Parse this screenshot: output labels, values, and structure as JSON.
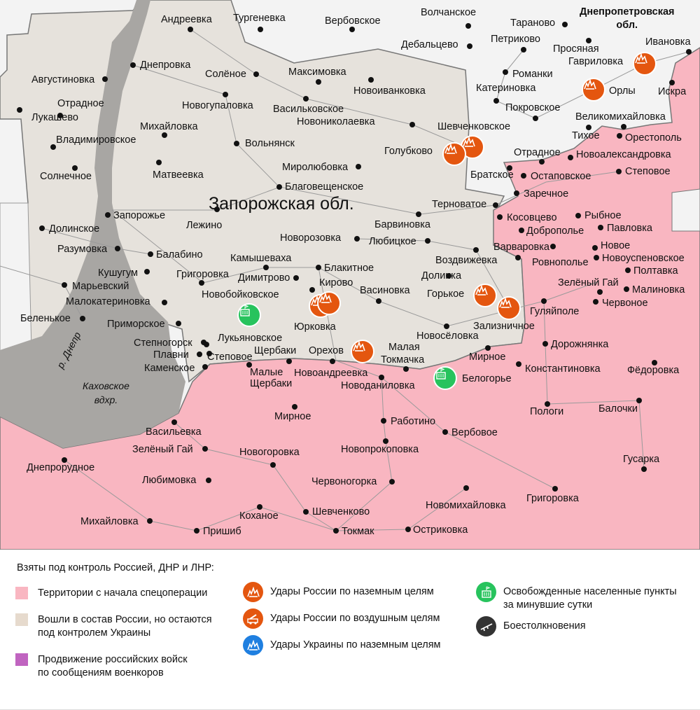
{
  "map": {
    "region_label": "Запорожская обл.",
    "neighbor_region": [
      "Днепропетровская",
      "обл."
    ],
    "river_label": "р. Днепр",
    "reservoir_label": [
      "Каховское",
      "вдхр."
    ],
    "colors": {
      "occupied": "#f9b6c1",
      "annexed_ukraine_control": "#e6e2dc",
      "outside": "#f3f3f3",
      "water": "#a8a6a3",
      "strike": "#e4560f",
      "liberated": "#27c35d"
    },
    "places": [
      "Андреевка",
      "Тургеневка",
      "Вербовское",
      "Волчанское",
      "Тараново",
      "Дебальцево",
      "Петриково",
      "Просяная",
      "Гавриловка",
      "Ивановка",
      "Романки",
      "Катериновка",
      "Орлы",
      "Искра",
      "Покровское",
      "Великомихайловка",
      "Тихое",
      "Орестополь",
      "Шевченковское",
      "Голубково",
      "Отрадное",
      "Новоалександровка",
      "Братское",
      "Остаповское",
      "Степовое",
      "Заречное",
      "Терноватое",
      "Косовцево",
      "Рыбное",
      "Доброполье",
      "Павловка",
      "Варваровка",
      "Новое",
      "Ровнополье",
      "Новоуспеновское",
      "Полтавка",
      "Зелёный Гай",
      "Малиновка",
      "Червоное",
      "Гуляйполе",
      "Дорожнянка",
      "Константиновка",
      "Фёдоровка",
      "Пологи",
      "Балочки",
      "Гусарка",
      "Григоровка",
      "Новомихайловка",
      "Остриковка",
      "Токмак",
      "Шевченково",
      "Коханое",
      "Пришиб",
      "Михайловка",
      "Любимовка",
      "Новогоровка",
      "Червоногорка",
      "Новопрокоповка",
      "Работино",
      "Вербовое",
      "Зелёный Гай",
      "Васильевка",
      "Днепрорудное",
      "Мирное",
      "Новоданиловка",
      "Белогорье",
      "Малая",
      "Токмачка",
      "Мирное",
      "Новоандреевка",
      "Орехов",
      "Щербаки",
      "Малые",
      "Щербаки",
      "Степовое",
      "Лукьяновское",
      "Степногорск",
      "Плавни",
      "Каменское",
      "Приморское",
      "Юрковка",
      "Новосёловка",
      "Зализничное",
      "Горькое",
      "Васиновка",
      "Кирово",
      "Долинка",
      "Воздвижевка",
      "Блакитное",
      "Димитрово",
      "Камышеваха",
      "Новобойковское",
      "Григоровка",
      "Кушугум",
      "Марьевский",
      "Малокатериновка",
      "Беленькое",
      "Балабино",
      "Разумовка",
      "Долинское",
      "Запорожье",
      "Лежино",
      "Новорозовка",
      "Любицкое",
      "Барвиновка",
      "Благовещенское",
      "Миролюбовка",
      "Вольнянск",
      "Матвеевка",
      "Солнечное",
      "Владимировское",
      "Михайловка",
      "Лукашево",
      "Отрадное",
      "Августиновка",
      "Днепровка",
      "Солёное",
      "Максимовка",
      "Новогупаловка",
      "Васильковское",
      "Новоиванковка",
      "Новониколаевка"
    ],
    "markers": [
      "strike",
      "strike",
      "strike",
      "strike",
      "strike",
      "strike",
      "strike",
      "strike",
      "strike",
      "liberated",
      "liberated"
    ]
  },
  "legend": {
    "title": "Взяты под контроль Россией, ДНР и ЛНР:",
    "items": [
      {
        "label": "Территории с начала спецоперации",
        "color": "#f9b6c1"
      },
      {
        "label": "Вошли в состав России, но остаются\nпод контролем Украины",
        "color": "#e6dacd"
      },
      {
        "label": "Продвижение российских войск\nпо сообщениям военкоров",
        "color": "#c064c0"
      },
      {
        "label": "Удары России по наземным целям",
        "icon": "explosion-icon",
        "color": "#e4560f"
      },
      {
        "label": "Удары России по воздушным целям",
        "icon": "rocket-launcher-icon",
        "color": "#e4560f"
      },
      {
        "label": "Удары Украины по наземным целям",
        "icon": "explosion-icon",
        "color": "#1f7fe0"
      },
      {
        "label": "Освобожденные населенные пункты\nза минувшие сутки",
        "icon": "building-flag-icon",
        "color": "#27c35d"
      },
      {
        "label": "Боестолкновения",
        "icon": "rifle-icon",
        "color": "#333333"
      }
    ]
  }
}
